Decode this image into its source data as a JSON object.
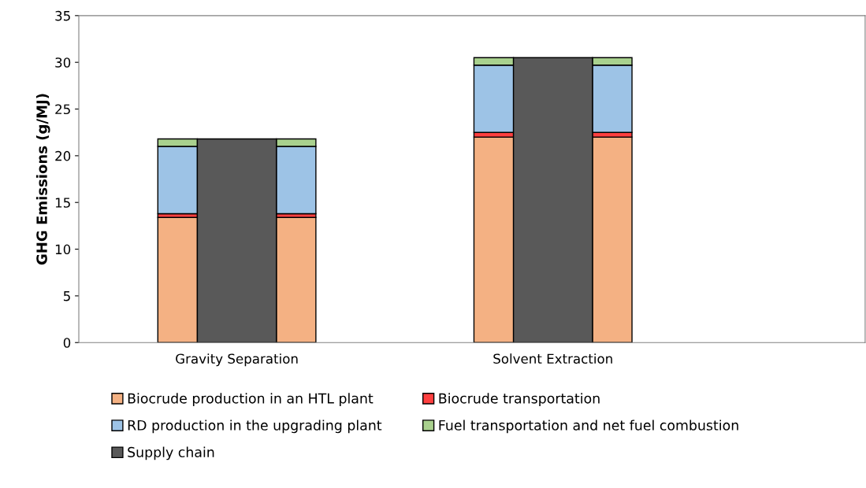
{
  "chart_data": {
    "type": "bar",
    "stacked": true,
    "ylabel": "GHG Emissions (g/MJ)",
    "categories": [
      null,
      "Gravity Separation",
      null,
      null,
      "Solvent Extraction",
      null
    ],
    "series": [
      {
        "name": "Biocrude production in an HTL plant",
        "color": "#f4b183",
        "values": [
          13.4,
          null,
          13.4,
          22.0,
          null,
          22.0
        ]
      },
      {
        "name": "Biocrude transportation",
        "color": "#ff4040",
        "values": [
          0.4,
          null,
          0.4,
          0.5,
          null,
          0.5
        ]
      },
      {
        "name": "RD production in the upgrading plant",
        "color": "#9dc3e6",
        "values": [
          7.2,
          null,
          7.2,
          7.2,
          null,
          7.2
        ]
      },
      {
        "name": "Fuel transportation and net fuel combustion",
        "color": "#a9d18e",
        "values": [
          0.8,
          null,
          0.8,
          0.8,
          null,
          0.8
        ]
      },
      {
        "name": "Supply chain",
        "color": "#595959",
        "values": [
          null,
          21.8,
          null,
          null,
          30.5,
          null
        ]
      }
    ],
    "ylim": [
      0,
      35
    ],
    "yticks": [
      0,
      5,
      10,
      15,
      20,
      25,
      30,
      35
    ],
    "grid": false,
    "legend": "bottom"
  }
}
